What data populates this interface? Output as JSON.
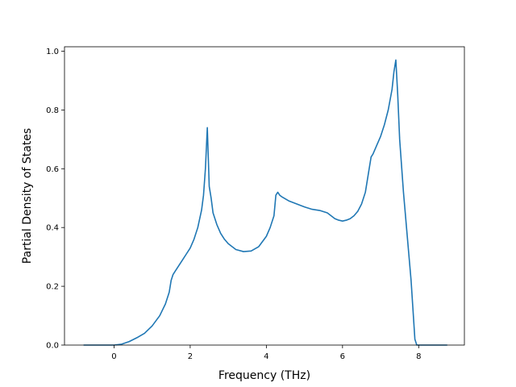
{
  "chart_data": {
    "type": "line",
    "xlabel": "Frequency (THz)",
    "ylabel": "Partial Density of States",
    "xlim": [
      -1.3,
      9.2
    ],
    "ylim": [
      0.0,
      1.015
    ],
    "xticks": [
      0,
      2,
      4,
      6,
      8
    ],
    "yticks": [
      0.0,
      0.2,
      0.4,
      0.6,
      0.8,
      1.0
    ],
    "ytick_labels": [
      "0.0",
      "0.2",
      "0.4",
      "0.6",
      "0.8",
      "1.0"
    ],
    "grid": false,
    "series": [
      {
        "color": "#1f77b4",
        "x": [
          -0.8,
          -0.4,
          0.0,
          0.2,
          0.4,
          0.6,
          0.8,
          1.0,
          1.2,
          1.35,
          1.45,
          1.5,
          1.55,
          1.6,
          1.7,
          1.8,
          1.9,
          2.0,
          2.1,
          2.2,
          2.3,
          2.35,
          2.4,
          2.45,
          2.5,
          2.55,
          2.6,
          2.7,
          2.8,
          2.9,
          3.0,
          3.2,
          3.4,
          3.6,
          3.8,
          4.0,
          4.1,
          4.2,
          4.25,
          4.3,
          4.35,
          4.4,
          4.6,
          4.8,
          5.0,
          5.2,
          5.4,
          5.6,
          5.7,
          5.8,
          5.9,
          6.0,
          6.1,
          6.2,
          6.3,
          6.4,
          6.5,
          6.6,
          6.7,
          6.75,
          6.8,
          6.9,
          7.0,
          7.1,
          7.2,
          7.3,
          7.35,
          7.4,
          7.45,
          7.5,
          7.6,
          7.7,
          7.8,
          7.9,
          7.95,
          8.1,
          8.4,
          8.75
        ],
        "y": [
          0.0,
          0.0,
          0.0,
          0.003,
          0.012,
          0.025,
          0.04,
          0.065,
          0.1,
          0.14,
          0.18,
          0.22,
          0.24,
          0.25,
          0.27,
          0.29,
          0.31,
          0.33,
          0.36,
          0.4,
          0.46,
          0.51,
          0.6,
          0.74,
          0.54,
          0.5,
          0.45,
          0.41,
          0.38,
          0.36,
          0.345,
          0.325,
          0.318,
          0.32,
          0.335,
          0.37,
          0.4,
          0.44,
          0.51,
          0.52,
          0.51,
          0.505,
          0.49,
          0.48,
          0.47,
          0.462,
          0.458,
          0.45,
          0.44,
          0.43,
          0.425,
          0.422,
          0.425,
          0.43,
          0.44,
          0.455,
          0.48,
          0.52,
          0.6,
          0.64,
          0.65,
          0.68,
          0.71,
          0.75,
          0.8,
          0.87,
          0.93,
          0.97,
          0.85,
          0.7,
          0.52,
          0.37,
          0.22,
          0.02,
          0.0,
          0.0,
          0.0,
          0.0
        ]
      }
    ]
  }
}
